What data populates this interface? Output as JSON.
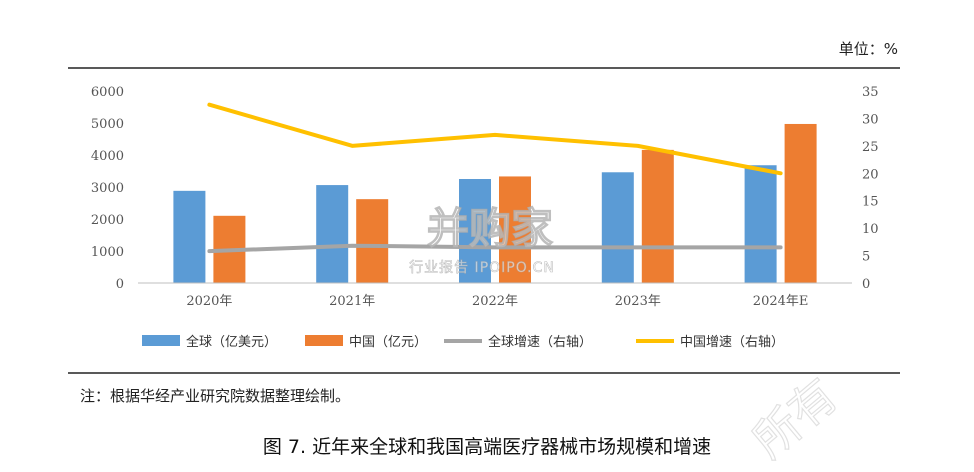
{
  "unit_label": "单位：%",
  "note": "注：根据华经产业研究院数据整理绘制。",
  "caption": "图 7. 近年来全球和我国高端医疗器械市场规模和增速",
  "watermark": {
    "main": "并购家",
    "sub": "行业报告 IPOIPO.CN",
    "corner": "所有"
  },
  "colors": {
    "global_bar": "#5B9BD5",
    "china_bar": "#ED7D31",
    "global_growth": "#A5A5A5",
    "china_growth": "#FFC000"
  },
  "chart_data": {
    "type": "bar",
    "categories": [
      "2020年",
      "2021年",
      "2022年",
      "2023年",
      "2024年E"
    ],
    "series": [
      {
        "name": "全球（亿美元）",
        "kind": "bar",
        "axis": "left",
        "values": [
          2880,
          3060,
          3250,
          3460,
          3680
        ]
      },
      {
        "name": "中国（亿元）",
        "kind": "bar",
        "axis": "left",
        "values": [
          2100,
          2620,
          3330,
          4160,
          4970
        ]
      },
      {
        "name": "全球增速（右轴）",
        "kind": "line",
        "axis": "right",
        "values": [
          5.8,
          6.8,
          6.5,
          6.5,
          6.5
        ]
      },
      {
        "name": "中国增速（右轴）",
        "kind": "line",
        "axis": "right",
        "values": [
          32.5,
          25.0,
          27.0,
          25.0,
          20.0
        ]
      }
    ],
    "y_left": {
      "min": 0,
      "max": 6000,
      "ticks": [
        "0",
        "1000",
        "2000",
        "3000",
        "4000",
        "5000",
        "6000"
      ]
    },
    "y_right": {
      "min": 0,
      "max": 35,
      "ticks": [
        "0",
        "5",
        "10",
        "15",
        "20",
        "25",
        "30",
        "35"
      ]
    },
    "grid": false,
    "legend_position": "bottom"
  }
}
